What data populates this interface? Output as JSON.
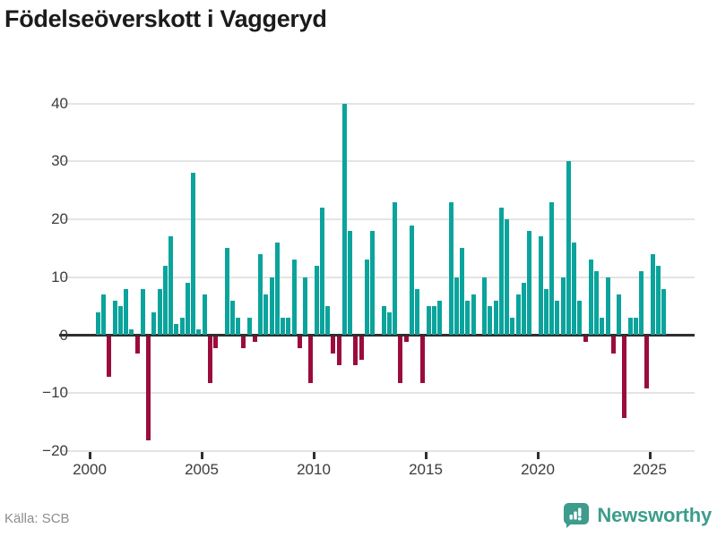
{
  "title": "Födelseöverskott i Vaggeryd",
  "source": "Källa: SCB",
  "branding": {
    "name": "Newsworthy",
    "icon": "newsworthy-speech-bubble-barchart-icon"
  },
  "colors": {
    "positive_bar": "#0aa49c",
    "negative_bar": "#9b0c3c",
    "zero_axis": "#2f2f2f",
    "gridline": "#e4e4e4",
    "tick_label": "#3c3c3c",
    "title_text": "#1b1b1b",
    "source_text": "#8d8d8d",
    "brand_teal": "#3d9c8c"
  },
  "chart_data": {
    "type": "bar",
    "title": "Födelseöverskott i Vaggeryd",
    "xlabel": "",
    "ylabel": "",
    "x_unit": "quarter",
    "ylim": [
      -20,
      40
    ],
    "grid": "horizontal",
    "legend": "none",
    "yticks": [
      {
        "label": "40",
        "value": 40
      },
      {
        "label": "30",
        "value": 30
      },
      {
        "label": "20",
        "value": 20
      },
      {
        "label": "10",
        "value": 10
      },
      {
        "label": "0",
        "value": 0
      },
      {
        "label": "−10",
        "value": -10
      },
      {
        "label": "−20",
        "value": -20
      }
    ],
    "xticks": [
      {
        "label": "2000",
        "year": 2000
      },
      {
        "label": "2005",
        "year": 2005
      },
      {
        "label": "2010",
        "year": 2010
      },
      {
        "label": "2015",
        "year": 2015
      },
      {
        "label": "2020",
        "year": 2020
      },
      {
        "label": "2025",
        "year": 2025
      }
    ],
    "categories": [
      "2000Q2",
      "2000Q3",
      "2000Q4",
      "2001Q1",
      "2001Q2",
      "2001Q3",
      "2001Q4",
      "2002Q1",
      "2002Q2",
      "2002Q3",
      "2002Q4",
      "2003Q1",
      "2003Q2",
      "2003Q3",
      "2003Q4",
      "2004Q1",
      "2004Q2",
      "2004Q3",
      "2004Q4",
      "2005Q1",
      "2005Q2",
      "2005Q3",
      "2005Q4",
      "2006Q1",
      "2006Q2",
      "2006Q3",
      "2006Q4",
      "2007Q1",
      "2007Q2",
      "2007Q3",
      "2007Q4",
      "2008Q1",
      "2008Q2",
      "2008Q3",
      "2008Q4",
      "2009Q1",
      "2009Q2",
      "2009Q3",
      "2009Q4",
      "2010Q1",
      "2010Q2",
      "2010Q3",
      "2010Q4",
      "2011Q1",
      "2011Q2",
      "2011Q3",
      "2011Q4",
      "2012Q1",
      "2012Q2",
      "2012Q3",
      "2012Q4",
      "2013Q1",
      "2013Q2",
      "2013Q3",
      "2013Q4",
      "2014Q1",
      "2014Q2",
      "2014Q3",
      "2014Q4",
      "2015Q1",
      "2015Q2",
      "2015Q3",
      "2015Q4",
      "2016Q1",
      "2016Q2",
      "2016Q3",
      "2016Q4",
      "2017Q1",
      "2017Q2",
      "2017Q3",
      "2017Q4",
      "2018Q1",
      "2018Q2",
      "2018Q3",
      "2018Q4",
      "2019Q1",
      "2019Q2",
      "2019Q3",
      "2019Q4",
      "2020Q1",
      "2020Q2",
      "2020Q3",
      "2020Q4",
      "2021Q1",
      "2021Q2",
      "2021Q3",
      "2021Q4",
      "2022Q1",
      "2022Q2",
      "2022Q3",
      "2022Q4",
      "2023Q1",
      "2023Q2",
      "2023Q3",
      "2023Q4",
      "2024Q1",
      "2024Q2",
      "2024Q3",
      "2024Q4",
      "2025Q1",
      "2025Q2",
      "2025Q3"
    ],
    "values": [
      4,
      7,
      -7,
      6,
      5,
      8,
      1,
      -3,
      8,
      -18,
      4,
      8,
      12,
      17,
      2,
      3,
      9,
      28,
      1,
      7,
      -8,
      -2,
      0,
      15,
      6,
      3,
      -2,
      3,
      -1,
      14,
      7,
      10,
      16,
      3,
      3,
      13,
      -2,
      10,
      -8,
      12,
      22,
      5,
      -3,
      -5,
      40,
      18,
      -5,
      -4,
      13,
      18,
      0,
      5,
      4,
      23,
      -8,
      -1,
      19,
      8,
      -8,
      5,
      5,
      6,
      0,
      23,
      10,
      15,
      6,
      7,
      0,
      10,
      5,
      6,
      22,
      20,
      3,
      7,
      9,
      18,
      0,
      17,
      8,
      23,
      6,
      10,
      30,
      16,
      6,
      -1,
      13,
      11,
      3,
      10,
      -3,
      7,
      -14,
      3,
      3,
      11,
      -9,
      14,
      12,
      8
    ]
  }
}
